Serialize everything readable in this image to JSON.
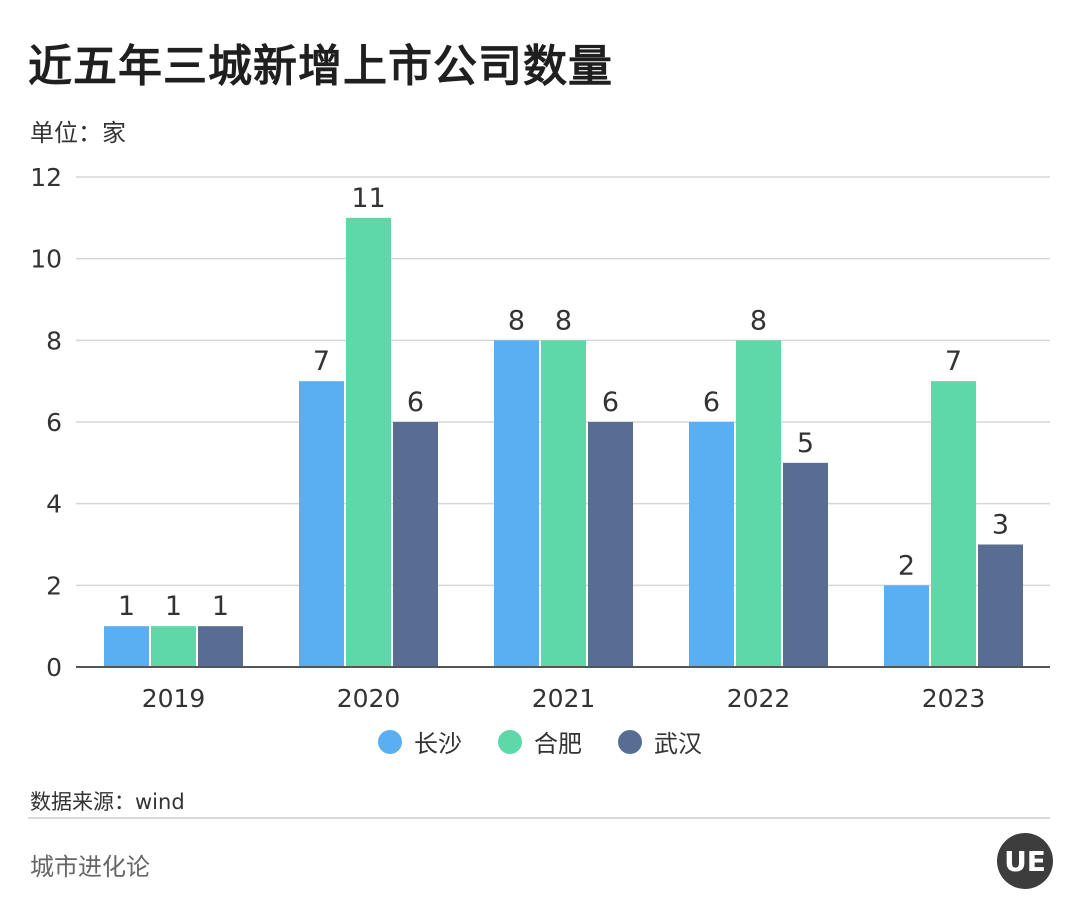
{
  "header": {
    "title": "近五年三城新增上市公司数量",
    "unit": "单位：家"
  },
  "chart_data": {
    "type": "bar",
    "title": "近五年三城新增上市公司数量",
    "ylabel": "单位：家",
    "xlabel": "",
    "categories": [
      "2019",
      "2020",
      "2021",
      "2022",
      "2023"
    ],
    "series": [
      {
        "name": "长沙",
        "color": "#5aaef2",
        "values": [
          1,
          7,
          8,
          6,
          2
        ]
      },
      {
        "name": "合肥",
        "color": "#5ed8a8",
        "values": [
          1,
          11,
          8,
          8,
          7
        ]
      },
      {
        "name": "武汉",
        "color": "#596d93",
        "values": [
          1,
          6,
          6,
          5,
          3
        ]
      }
    ],
    "ylim": [
      0,
      12
    ],
    "yticks": [
      0,
      2,
      4,
      6,
      8,
      10,
      12
    ],
    "grid": true,
    "legend": "bottom-center"
  },
  "legend": {
    "items": [
      {
        "label": "长沙",
        "color": "#5aaef2"
      },
      {
        "label": "合肥",
        "color": "#5ed8a8"
      },
      {
        "label": "武汉",
        "color": "#596d93"
      }
    ]
  },
  "footer": {
    "source": "数据来源：wind",
    "brand": "城市进化论",
    "logo_text": "UE"
  }
}
